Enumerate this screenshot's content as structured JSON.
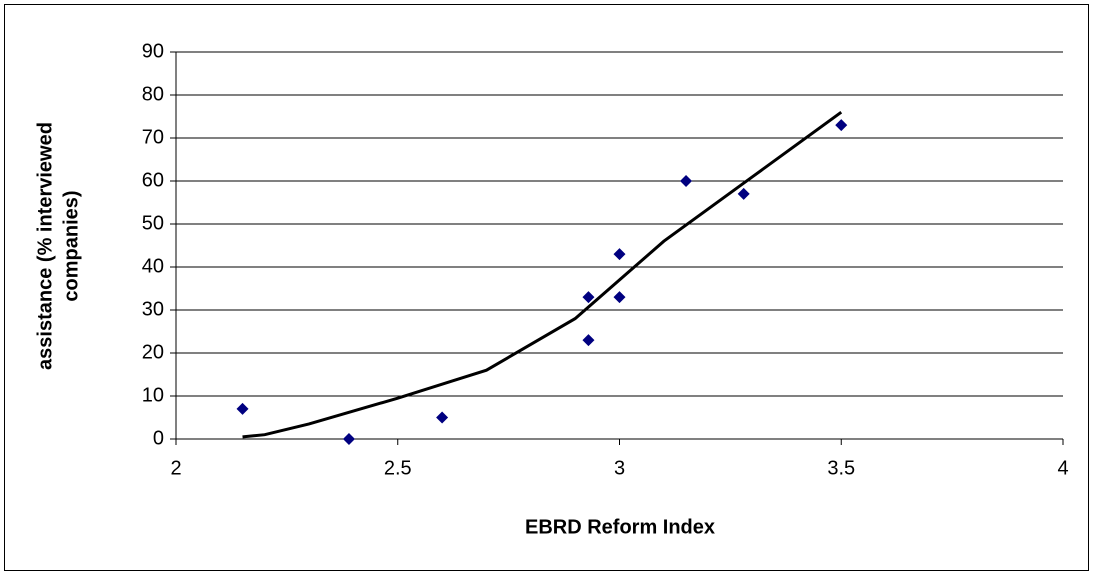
{
  "chart_data": {
    "type": "scatter",
    "xlabel": "EBRD Reform Index",
    "ylabel": [
      "assistance (% interviewed",
      "companies)"
    ],
    "xlim": [
      2,
      4
    ],
    "xticks": [
      2,
      2.5,
      3,
      3.5,
      4
    ],
    "ylim": [
      0,
      90
    ],
    "yticks": [
      0,
      10,
      20,
      30,
      40,
      50,
      60,
      70,
      80,
      90
    ],
    "grid": true,
    "series": [
      {
        "type": "scatter",
        "color": "#000080",
        "x": [
          2.15,
          2.39,
          2.6,
          2.93,
          2.93,
          3.0,
          3.0,
          3.15,
          3.28,
          3.5
        ],
        "values": [
          7,
          0,
          5,
          33,
          23,
          43,
          33,
          60,
          57,
          73
        ]
      },
      {
        "type": "line",
        "color": "#000000",
        "x": [
          2.15,
          2.2,
          2.3,
          2.5,
          2.7,
          2.9,
          3.1,
          3.3,
          3.5
        ],
        "values": [
          0.5,
          1,
          3.5,
          9.5,
          16,
          28,
          46,
          61,
          76
        ]
      }
    ]
  }
}
